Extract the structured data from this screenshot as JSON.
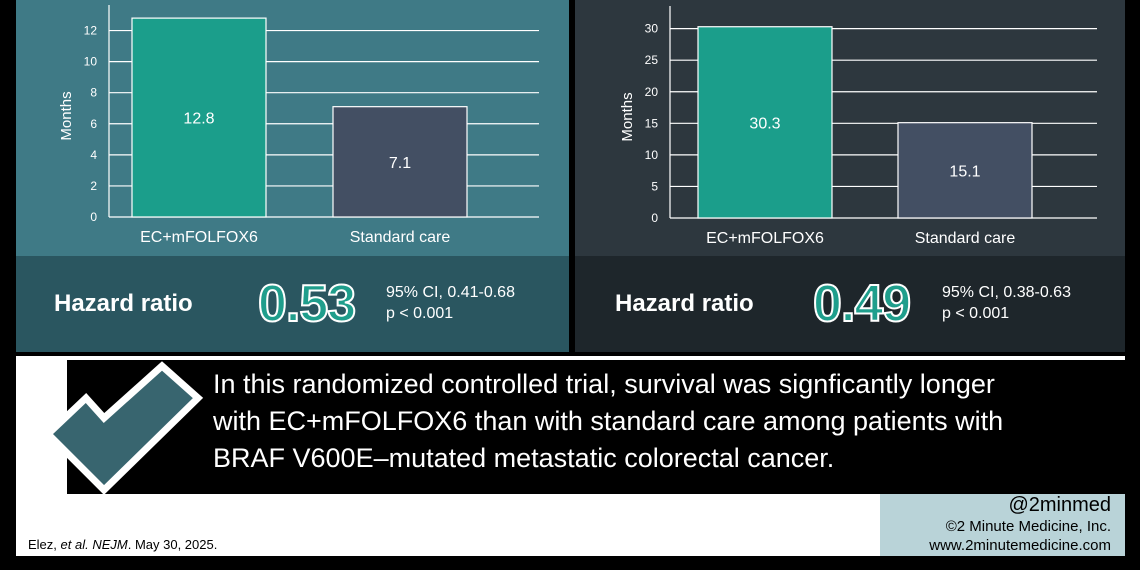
{
  "colors": {
    "left_panel_bg": "#3f7a86",
    "right_panel_bg": "#2d373e",
    "treatment_bar": "#1b9e8b",
    "control_bar": "#434f63",
    "accent": "#1f9e8c"
  },
  "chart_data": [
    {
      "type": "bar",
      "categories": [
        "EC+mFOLFOX6",
        "Standard care"
      ],
      "values": [
        12.8,
        7.1
      ],
      "data_labels": [
        "12.8",
        "7.1"
      ],
      "ylabel": "Months",
      "ylim": [
        0,
        13
      ],
      "yticks": [
        0,
        2,
        4,
        6,
        8,
        10,
        12
      ],
      "grid": true,
      "hazard_ratio": {
        "label": "Hazard ratio",
        "value": "0.53",
        "ci": "95% CI, 0.41-0.68",
        "p": "p < 0.001"
      }
    },
    {
      "type": "bar",
      "categories": [
        "EC+mFOLFOX6",
        "Standard care"
      ],
      "values": [
        30.3,
        15.1
      ],
      "data_labels": [
        "30.3",
        "15.1"
      ],
      "ylabel": "Months",
      "ylim": [
        0,
        32
      ],
      "yticks": [
        0,
        5,
        10,
        15,
        20,
        25,
        30
      ],
      "grid": true,
      "hazard_ratio": {
        "label": "Hazard ratio",
        "value": "0.49",
        "ci": "95% CI, 0.38-0.63",
        "p": "p < 0.001"
      }
    }
  ],
  "conclusion": {
    "lines": [
      "In this randomized controlled trial, survival was signficantly longer",
      "with EC+mFOLFOX6 than with standard care among patients with",
      "BRAF V600E–mutated metastatic colorectal cancer."
    ]
  },
  "branding": {
    "handle": "@2minmed",
    "copyright": "©2 Minute Medicine, Inc.",
    "website": "www.2minutemedicine.com"
  },
  "citation": {
    "authors": "Elez, ",
    "etal": "et al.",
    "journal": "NEJM",
    "date": ". May 30, 2025."
  }
}
